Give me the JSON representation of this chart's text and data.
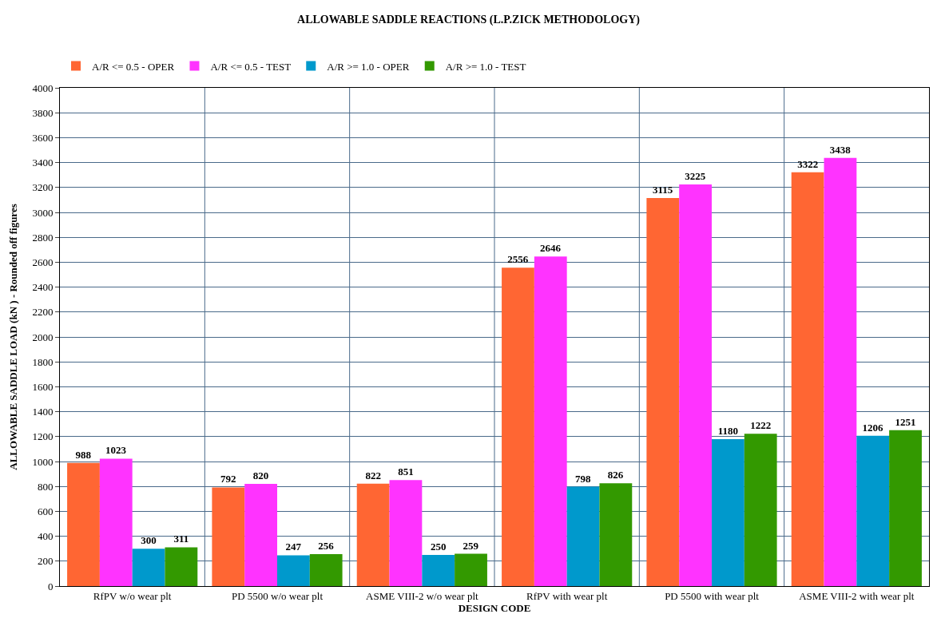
{
  "chart_data": {
    "type": "bar",
    "title": "ALLOWABLE SADDLE REACTIONS (L.P.ZICK METHODOLOGY)",
    "xlabel": "DESIGN CODE",
    "ylabel": "ALLOWABLE SADDLE LOAD (kN ) - Rounded off figures",
    "categories": [
      "RfPV w/o wear plt",
      "PD 5500 w/o wear plt",
      "ASME VIII-2 w/o wear plt",
      "RfPV with wear plt",
      "PD 5500 with wear plt",
      "ASME VIII-2 with wear plt"
    ],
    "series": [
      {
        "name": "A/R <= 0.5 - OPER",
        "color": "#ff6633",
        "values": [
          988,
          792,
          822,
          2556,
          3115,
          3322
        ]
      },
      {
        "name": "A/R <= 0.5 - TEST",
        "color": "#ff33ff",
        "values": [
          1023,
          820,
          851,
          2646,
          3225,
          3438
        ]
      },
      {
        "name": "A/R >= 1.0 - OPER",
        "color": "#0099cc",
        "values": [
          300,
          247,
          250,
          798,
          1180,
          1206
        ]
      },
      {
        "name": "A/R >= 1.0 - TEST",
        "color": "#339900",
        "values": [
          311,
          256,
          259,
          826,
          1222,
          1251
        ]
      }
    ],
    "ylim": [
      0,
      4000
    ],
    "yticks": [
      0,
      200,
      400,
      600,
      800,
      1000,
      1200,
      1400,
      1600,
      1800,
      2000,
      2200,
      2400,
      2600,
      2800,
      3000,
      3200,
      3400,
      3600,
      3800,
      4000
    ],
    "grid": true,
    "legend": "top left",
    "data_labels": true
  }
}
